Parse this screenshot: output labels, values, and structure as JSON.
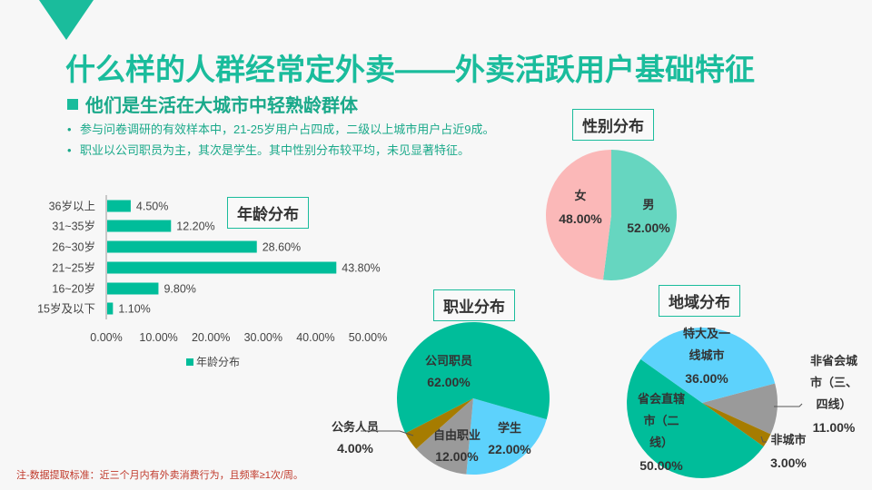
{
  "header": {
    "title": "什么样的人群经常定外卖——外卖活跃用户基础特征",
    "subtitle": "他们是生活在大城市中轻熟龄群体",
    "bullets": [
      "参与问卷调研的有效样本中，21-25岁用户占四成，二级以上城市用户占近9成。",
      "职业以公司职员为主，其次是学生。其中性别分布较平均，未见显著特征。"
    ]
  },
  "note": "注-数据提取标准：近三个月内有外卖消费行为，且频率≥1次/周。",
  "colors": {
    "accent": "#1abc9c",
    "teal": "#00bd9a",
    "mint": "#66d6c0",
    "pink": "#fbb8b8",
    "sky": "#5dd2fc",
    "gray": "#9a9a9a",
    "brown": "#a67c00"
  },
  "chart_data": [
    {
      "type": "bar",
      "title": "年龄分布",
      "legend": "年龄分布",
      "categories": [
        "36岁以上",
        "31~35岁",
        "26~30岁",
        "21~25岁",
        "16~20岁",
        "15岁及以下"
      ],
      "values": [
        4.5,
        12.2,
        28.6,
        43.8,
        9.8,
        1.1
      ],
      "value_labels": [
        "4.50%",
        "12.20%",
        "28.60%",
        "43.80%",
        "9.80%",
        "1.10%"
      ],
      "xlim": [
        0,
        50
      ],
      "xticks": [
        "0.00%",
        "10.00%",
        "20.00%",
        "30.00%",
        "40.00%",
        "50.00%"
      ],
      "legend_position": "bottom"
    },
    {
      "type": "pie",
      "title": "性别分布",
      "slices": [
        {
          "name": "男",
          "value": 52,
          "label": "52.00%",
          "color": "#66d6c0"
        },
        {
          "name": "女",
          "value": 48,
          "label": "48.00%",
          "color": "#fbb8b8"
        }
      ]
    },
    {
      "type": "pie",
      "title": "职业分布",
      "slices": [
        {
          "name": "学生",
          "value": 22,
          "label": "22.00%",
          "color": "#5dd2fc"
        },
        {
          "name": "自由职业",
          "value": 12,
          "label": "12.00%",
          "color": "#9a9a9a"
        },
        {
          "name": "公务人员",
          "value": 4,
          "label": "4.00%",
          "color": "#a67c00"
        },
        {
          "name": "公司职员",
          "value": 62,
          "label": "62.00%",
          "color": "#00bd9a"
        }
      ]
    },
    {
      "type": "pie",
      "title": "地域分布",
      "slices": [
        {
          "name": "非省会城市（三、四线）",
          "name_lines": [
            "非省会城",
            "市（三、",
            "四线）"
          ],
          "value": 11,
          "label": "11.00%",
          "color": "#9a9a9a"
        },
        {
          "name": "非城市",
          "name_lines": [
            "非城市"
          ],
          "value": 3,
          "label": "3.00%",
          "color": "#a67c00"
        },
        {
          "name": "省会直辖市（二线）",
          "name_lines": [
            "省会直辖",
            "市（二",
            "线）"
          ],
          "value": 50,
          "label": "50.00%",
          "color": "#00bd9a"
        },
        {
          "name": "特大及一线城市",
          "name_lines": [
            "特大及一",
            "线城市"
          ],
          "value": 36,
          "label": "36.00%",
          "color": "#5dd2fc"
        }
      ]
    }
  ]
}
